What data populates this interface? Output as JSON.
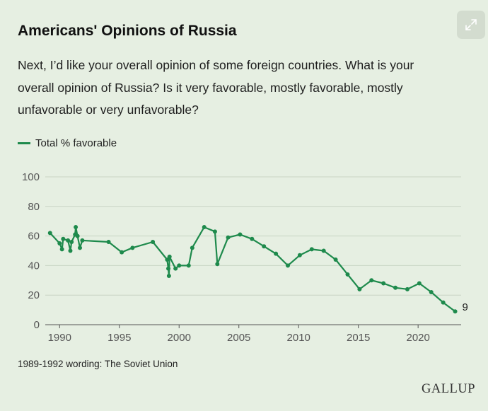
{
  "title": "Americans' Opinions of Russia",
  "question": "Next, I’d like your overall opinion of some foreign countries. What is your overall opinion of Russia? Is it very favorable, mostly favorable, mostly unfavorable or very unfavorable?",
  "expand_icon": "expand-icon",
  "note": "1989-1992 wording: The Soviet Union",
  "brand": "GALLUP",
  "colors": {
    "background": "#e6efe2",
    "line": "#1e8a4c",
    "grid": "#c9d4c4",
    "button": "#d3dccf"
  },
  "chart_data": {
    "type": "line",
    "title": "",
    "xlabel": "",
    "ylabel": "",
    "ylim": [
      0,
      100
    ],
    "xlim": [
      1988.8,
      2023.6
    ],
    "y_ticks": [
      "0",
      "20",
      "40",
      "60",
      "80",
      "100"
    ],
    "x_ticks": [
      "1990",
      "1995",
      "2000",
      "2005",
      "2010",
      "2015",
      "2020"
    ],
    "grid": true,
    "legend_position": "top-left",
    "end_label": "9",
    "series": [
      {
        "name": "Total % favorable",
        "points": [
          [
            1989.2,
            62
          ],
          [
            1990.0,
            55
          ],
          [
            1990.2,
            51
          ],
          [
            1990.3,
            58
          ],
          [
            1990.7,
            57
          ],
          [
            1990.9,
            50
          ],
          [
            1991.0,
            56
          ],
          [
            1991.3,
            61
          ],
          [
            1991.35,
            66
          ],
          [
            1991.5,
            60
          ],
          [
            1991.7,
            52
          ],
          [
            1991.9,
            57
          ],
          [
            1994.1,
            56
          ],
          [
            1995.2,
            49
          ],
          [
            1996.1,
            52
          ],
          [
            1997.8,
            56
          ],
          [
            1999.0,
            44
          ],
          [
            1999.1,
            38
          ],
          [
            1999.15,
            33
          ],
          [
            1999.2,
            46
          ],
          [
            1999.7,
            38
          ],
          [
            2000.0,
            40
          ],
          [
            2000.8,
            40
          ],
          [
            2001.1,
            52
          ],
          [
            2002.1,
            66
          ],
          [
            2003.0,
            63
          ],
          [
            2003.2,
            41
          ],
          [
            2004.1,
            59
          ],
          [
            2005.1,
            61
          ],
          [
            2006.1,
            58
          ],
          [
            2007.1,
            53
          ],
          [
            2008.1,
            48
          ],
          [
            2009.1,
            40
          ],
          [
            2010.1,
            47
          ],
          [
            2011.1,
            51
          ],
          [
            2012.1,
            50
          ],
          [
            2013.1,
            44
          ],
          [
            2014.1,
            34
          ],
          [
            2015.1,
            24
          ],
          [
            2016.1,
            30
          ],
          [
            2017.1,
            28
          ],
          [
            2018.1,
            25
          ],
          [
            2019.1,
            24
          ],
          [
            2020.1,
            28
          ],
          [
            2021.1,
            22
          ],
          [
            2022.1,
            15
          ],
          [
            2023.1,
            9
          ]
        ]
      }
    ]
  }
}
